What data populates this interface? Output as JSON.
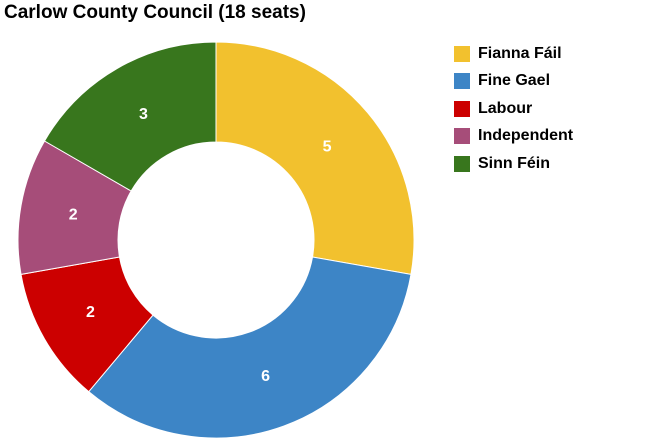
{
  "chart_data": {
    "type": "pie",
    "variant": "donut",
    "title": "Carlow County Council (18 seats)",
    "categories": [
      "Fianna Fáil",
      "Fine Gael",
      "Labour",
      "Independent",
      "Sinn Féin"
    ],
    "values": [
      5,
      6,
      2,
      2,
      3
    ],
    "colors": [
      "#F2C12E",
      "#3D85C6",
      "#CC0000",
      "#A64D79",
      "#38761D"
    ],
    "legend_position": "right"
  }
}
